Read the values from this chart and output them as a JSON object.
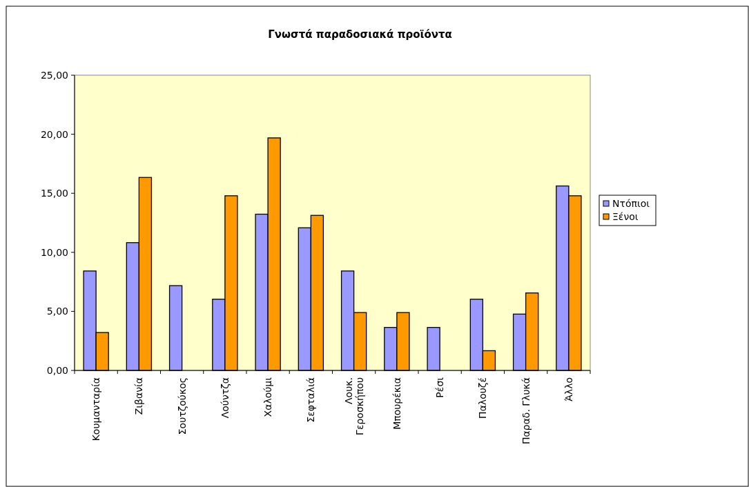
{
  "chart_data": {
    "type": "bar",
    "title": "Γνωστά παραδοσιακά προϊόντα",
    "categories": [
      "Κουμανταρία",
      "Ζιβανία",
      "Σουτζούκος",
      "Λούντζα",
      "Χαλούμι",
      "Σεφταλιά",
      "Λουκ. Γεροσκήπου",
      "Μπουρέκια",
      "Ρέσι",
      "Παλουζέ",
      "Παραδ. Γλυκά",
      "Άλλο"
    ],
    "series": [
      {
        "name": "Ντόπιοι",
        "color": "#9999ff",
        "values": [
          8.42,
          10.82,
          7.18,
          6.03,
          13.23,
          12.08,
          8.42,
          3.64,
          3.64,
          6.03,
          4.77,
          15.62
        ]
      },
      {
        "name": "Ξένοι",
        "color": "#ff9900",
        "values": [
          3.21,
          16.34,
          0,
          14.79,
          19.69,
          13.13,
          4.9,
          4.9,
          0,
          1.67,
          6.56,
          14.79
        ]
      }
    ],
    "ylim": [
      0,
      25
    ],
    "yticks": [
      {
        "value": 0,
        "label": "0,00"
      },
      {
        "value": 5,
        "label": "5,00"
      },
      {
        "value": 10,
        "label": "10,00"
      },
      {
        "value": 15,
        "label": "15,00"
      },
      {
        "value": 20,
        "label": "20,00"
      },
      {
        "value": 25,
        "label": "25,00"
      }
    ],
    "grid": false,
    "legend": "right"
  }
}
